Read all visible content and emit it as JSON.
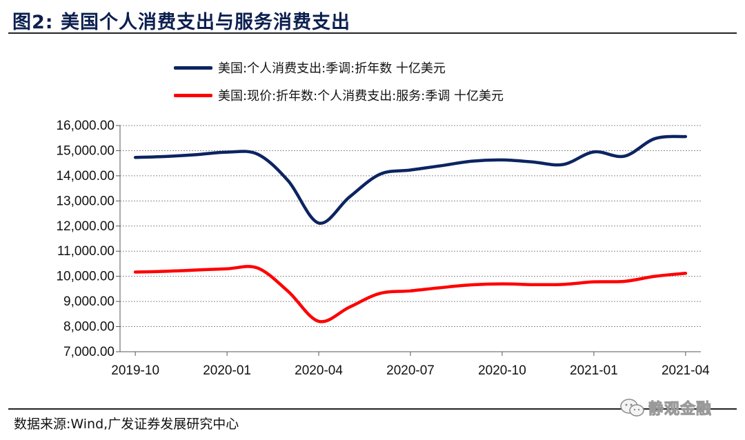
{
  "figure": {
    "title": "图2:  美国个人消费支出与服务消费支出",
    "source": "数据来源:Wind,广发证券发展研究中心",
    "watermark": "静观金融",
    "watermark_icon": "wechat-logo-icon"
  },
  "chart_data": {
    "type": "line",
    "x": [
      "2019-10",
      "2019-11",
      "2019-12",
      "2020-01",
      "2020-02",
      "2020-03",
      "2020-04",
      "2020-05",
      "2020-06",
      "2020-07",
      "2020-08",
      "2020-09",
      "2020-10",
      "2020-11",
      "2020-12",
      "2021-01",
      "2021-02",
      "2021-03",
      "2021-04"
    ],
    "xticks": [
      "2019-10",
      "2020-01",
      "2020-04",
      "2020-07",
      "2020-10",
      "2021-01",
      "2021-04"
    ],
    "ylim": [
      7000,
      16000
    ],
    "yticks": [
      "7,000.00",
      "8,000.00",
      "9,000.00",
      "10,000.00",
      "11,000.00",
      "12,000.00",
      "13,000.00",
      "14,000.00",
      "15,000.00",
      "16,000.00"
    ],
    "grid": true,
    "legend_position": "top",
    "series": [
      {
        "name": "美国:个人消费支出:季调:折年数 十亿美元",
        "color": "#0c2461",
        "values": [
          14730,
          14770,
          14840,
          14940,
          14860,
          13800,
          12120,
          13150,
          14060,
          14230,
          14400,
          14580,
          14630,
          14550,
          14450,
          14950,
          14780,
          15480,
          15560
        ]
      },
      {
        "name": "美国:现价:折年数:个人消费支出:服务:季调 十亿美元",
        "color": "#ff0000",
        "values": [
          10170,
          10200,
          10250,
          10300,
          10330,
          9400,
          8210,
          8770,
          9320,
          9420,
          9550,
          9660,
          9700,
          9670,
          9680,
          9780,
          9800,
          10000,
          10120
        ]
      }
    ]
  }
}
